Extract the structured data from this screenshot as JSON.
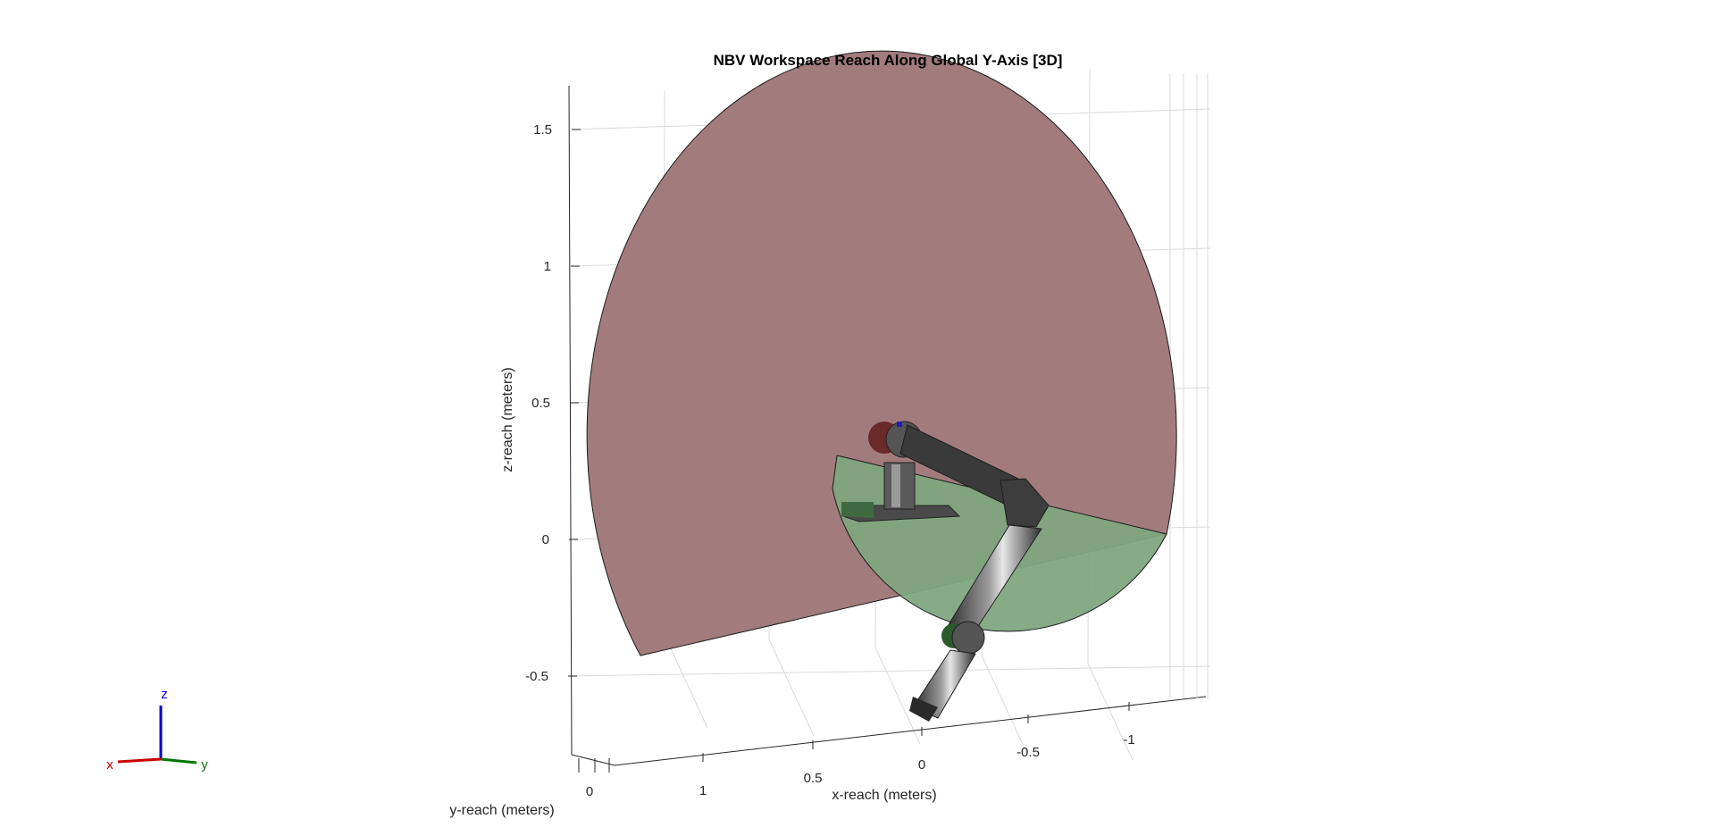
{
  "chart_data": {
    "type": "3d-surface",
    "title": "NBV Workspace Reach Along Global Y-Axis [3D]",
    "xlabel": "x-reach (meters)",
    "ylabel": "y-reach (meters)",
    "zlabel": "z-reach (meters)",
    "z_ticks": [
      {
        "value": 1.5,
        "label": "1.5"
      },
      {
        "value": 1,
        "label": "1"
      },
      {
        "value": 0.5,
        "label": "0.5"
      },
      {
        "value": 0,
        "label": "0"
      },
      {
        "value": -0.5,
        "label": "-0.5"
      }
    ],
    "x_ticks": [
      {
        "value": 1,
        "label": "1"
      },
      {
        "value": 0.5,
        "label": "0.5"
      },
      {
        "value": 0,
        "label": "0"
      },
      {
        "value": -0.5,
        "label": "-0.5"
      },
      {
        "value": -1,
        "label": "-1"
      }
    ],
    "y_ticks": [
      {
        "value": 0,
        "label": "0"
      }
    ],
    "grid": true,
    "surfaces": [
      {
        "name": "upper-reach-region",
        "color": "#a27c7d",
        "description_visible": false
      },
      {
        "name": "lower-reach-region",
        "color": "#7fa77f",
        "description_visible": false
      }
    ],
    "robot_color": "#3c3c3c",
    "orientation_triad": {
      "x_label": "x",
      "y_label": "y",
      "z_label": "z",
      "x_color": "#cc0000",
      "y_color": "#007700",
      "z_color": "#0000cc"
    }
  }
}
